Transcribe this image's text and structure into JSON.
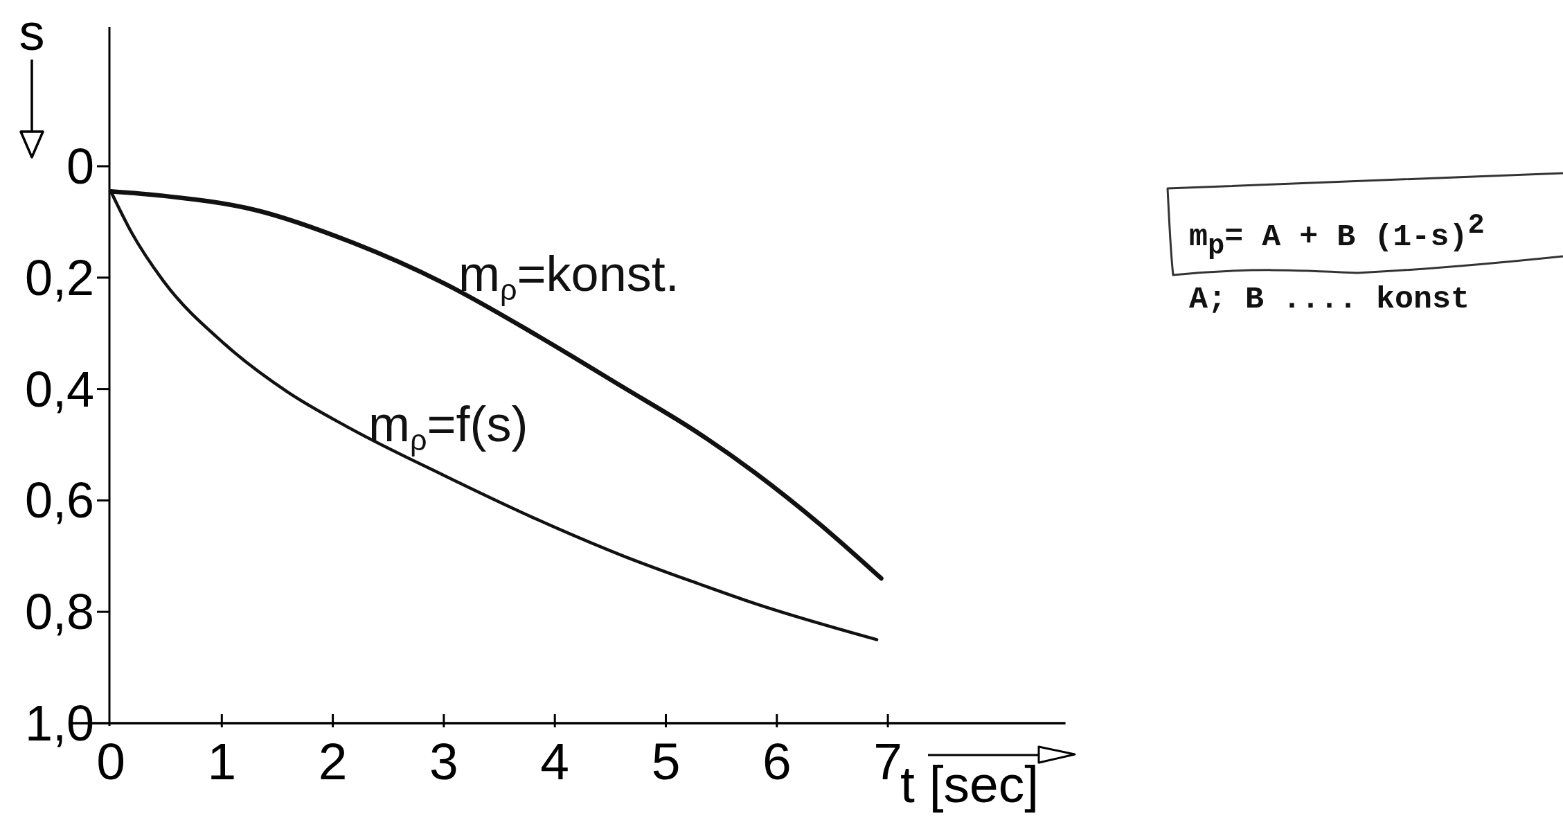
{
  "chart_data": {
    "type": "line",
    "xlabel": "t [sec]",
    "ylabel": "s",
    "xlim": [
      0,
      8.6
    ],
    "xticks": [
      0,
      1,
      2,
      3,
      4,
      5,
      6,
      7
    ],
    "ylim": [
      1.0,
      -0.25
    ],
    "yticks": [
      0,
      {
        "value": 0.2,
        "label": "0,2"
      },
      {
        "value": 0.4,
        "label": "0,4"
      },
      {
        "value": 0.6,
        "label": "0,6"
      },
      {
        "value": 0.8,
        "label": "0,8"
      },
      {
        "value": 1.0,
        "label": "1,0"
      }
    ],
    "series": [
      {
        "name": "m$_{ρ}$=konst.",
        "color": "#111111",
        "x": [
          0,
          0.47,
          1.31,
          2.15,
          3.0,
          3.85,
          4.6,
          5.3,
          5.8,
          6.4,
          6.94
        ],
        "values": [
          0.045,
          0.053,
          0.079,
          0.135,
          0.21,
          0.305,
          0.395,
          0.48,
          0.55,
          0.645,
          0.74
        ]
      },
      {
        "name": "m$_{ρ}$=f(s)",
        "color": "#111111",
        "x": [
          0,
          0.19,
          0.47,
          1.03,
          1.59,
          2.15,
          3.0,
          3.85,
          4.62,
          5.3,
          5.8,
          6.9
        ],
        "values": [
          0.045,
          0.12,
          0.205,
          0.32,
          0.405,
          0.47,
          0.555,
          0.635,
          0.7,
          0.75,
          0.785,
          0.85
        ]
      }
    ],
    "annotations": [
      "m$_{p}$= A + B (1-s)$^{2}$",
      "A; B .... konst"
    ]
  }
}
